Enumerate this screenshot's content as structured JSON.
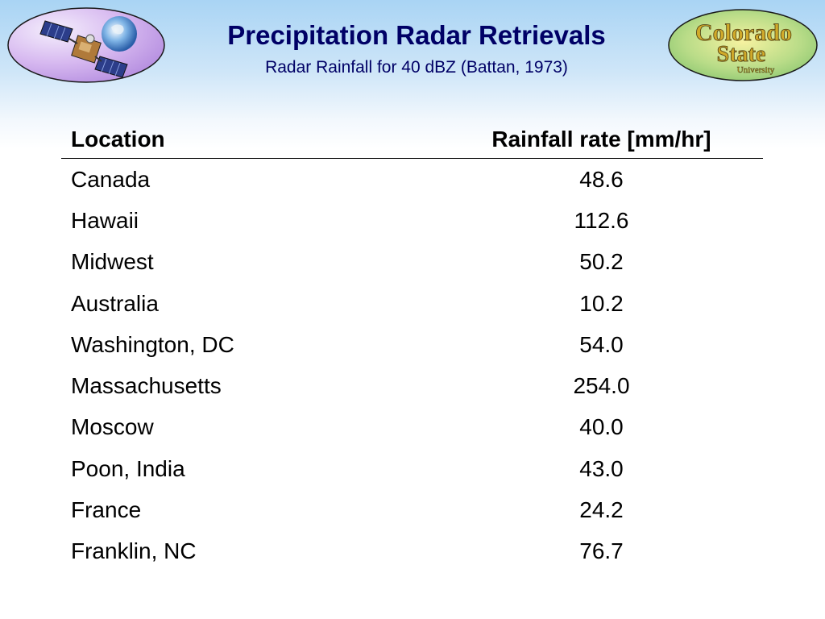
{
  "slide": {
    "title": "Precipitation Radar Retrievals",
    "subtitle": "Radar Rainfall for 40 dBZ (Battan, 1973)"
  },
  "logos": {
    "left": "satellite-earth-logo",
    "right_line1": "Colorado",
    "right_line2": "State",
    "right_line3": "University"
  },
  "table": {
    "headers": [
      "Location",
      "Rainfall rate [mm/hr]"
    ],
    "rows": [
      [
        "Canada",
        "48.6"
      ],
      [
        "Hawaii",
        "112.6"
      ],
      [
        "Midwest",
        "50.2"
      ],
      [
        "Australia",
        "10.2"
      ],
      [
        "Washington, DC",
        "54.0"
      ],
      [
        "Massachusetts",
        "254.0"
      ],
      [
        "Moscow",
        "40.0"
      ],
      [
        "Poon, India",
        "43.0"
      ],
      [
        "France",
        "24.2"
      ],
      [
        "Franklin, NC",
        "76.7"
      ]
    ]
  },
  "colors": {
    "title": "#000066",
    "background_top": "#a9d4f4",
    "logo_gold": "#c9a227"
  }
}
